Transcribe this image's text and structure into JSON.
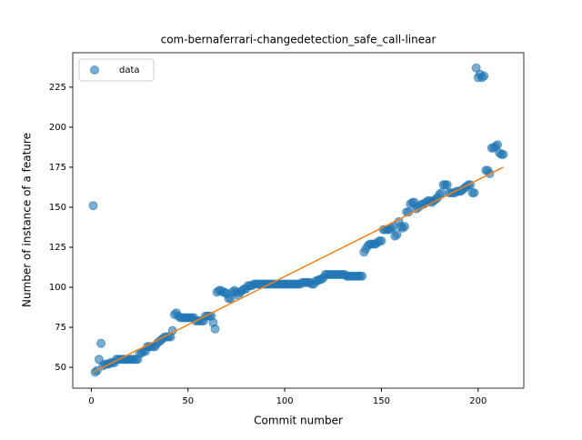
{
  "chart_data": {
    "type": "scatter",
    "title": "com-bernaferrari-changedetection_safe_call-linear",
    "x_label": "Commit number",
    "y_label": "Number of instance of a feature",
    "xlim": [
      -9.6,
      223.6
    ],
    "ylim": [
      37,
      246.5
    ],
    "xticks": [
      0,
      50,
      100,
      150,
      200
    ],
    "yticks": [
      50,
      75,
      100,
      125,
      150,
      175,
      200,
      225
    ],
    "legend": "upper left",
    "series": [
      {
        "name": "data",
        "color": "#1f77b4",
        "x": [
          1,
          2,
          3,
          4,
          5,
          6,
          7,
          8,
          9,
          10,
          11,
          12,
          13,
          14,
          15,
          16,
          17,
          18,
          19,
          20,
          21,
          22,
          23,
          24,
          25,
          26,
          27,
          28,
          29,
          30,
          31,
          32,
          33,
          34,
          35,
          36,
          37,
          38,
          39,
          40,
          41,
          42,
          43,
          44,
          45,
          46,
          47,
          48,
          49,
          50,
          51,
          52,
          53,
          54,
          55,
          56,
          57,
          58,
          59,
          60,
          61,
          62,
          63,
          64,
          65,
          66,
          67,
          68,
          69,
          70,
          71,
          72,
          73,
          74,
          75,
          76,
          77,
          78,
          79,
          80,
          81,
          82,
          83,
          84,
          85,
          86,
          87,
          88,
          89,
          90,
          91,
          92,
          93,
          94,
          95,
          96,
          97,
          98,
          99,
          100,
          101,
          102,
          103,
          104,
          105,
          106,
          107,
          108,
          109,
          110,
          111,
          112,
          113,
          114,
          115,
          116,
          117,
          118,
          119,
          120,
          121,
          122,
          123,
          124,
          125,
          126,
          127,
          128,
          129,
          130,
          131,
          132,
          133,
          134,
          135,
          136,
          137,
          138,
          139,
          140,
          141,
          142,
          143,
          144,
          145,
          146,
          147,
          148,
          149,
          150,
          151,
          152,
          153,
          154,
          155,
          156,
          157,
          158,
          159,
          160,
          161,
          162,
          163,
          164,
          165,
          166,
          167,
          168,
          169,
          170,
          171,
          172,
          173,
          174,
          175,
          176,
          177,
          178,
          179,
          180,
          181,
          182,
          183,
          184,
          185,
          186,
          187,
          188,
          189,
          190,
          191,
          192,
          193,
          194,
          195,
          196,
          197,
          198,
          199,
          200,
          201,
          202,
          203,
          204,
          205,
          206,
          207,
          208,
          209,
          210,
          211,
          212,
          213
        ],
        "values": [
          151,
          47,
          48,
          55,
          65,
          51,
          52,
          52,
          52,
          53,
          53,
          53,
          55,
          55,
          55,
          55,
          55,
          55,
          55,
          55,
          55,
          55,
          55,
          55,
          59,
          59,
          60,
          60,
          63,
          63,
          63,
          63,
          63,
          65,
          66,
          67,
          68,
          69,
          69,
          69,
          69,
          73,
          83,
          84,
          82,
          81,
          81,
          81,
          81,
          81,
          81,
          81,
          81,
          79,
          79,
          79,
          79,
          79,
          82,
          82,
          82,
          82,
          78,
          74,
          97,
          98,
          98,
          97,
          97,
          96,
          93,
          93,
          97,
          98,
          97,
          95,
          97,
          98,
          99,
          99,
          101,
          101,
          101,
          102,
          102,
          102,
          102,
          102,
          102,
          102,
          102,
          102,
          102,
          102,
          102,
          102,
          102,
          102,
          102,
          102,
          102,
          102,
          102,
          102,
          102,
          102,
          102,
          102,
          103,
          103,
          103,
          103,
          103,
          102,
          102,
          104,
          104,
          105,
          105,
          106,
          108,
          108,
          108,
          108,
          108,
          108,
          108,
          108,
          108,
          108,
          108,
          107,
          107,
          107,
          107,
          107,
          107,
          107,
          107,
          107,
          122,
          124,
          126,
          127,
          127,
          127,
          127,
          128,
          129,
          129,
          136,
          136,
          136,
          136,
          137,
          138,
          132,
          133,
          141,
          138,
          137,
          138,
          147,
          147,
          152,
          153,
          153,
          149,
          150,
          151,
          152,
          152,
          153,
          154,
          154,
          153,
          154,
          155,
          156,
          158,
          159,
          164,
          164,
          164,
          159,
          159,
          159,
          159,
          160,
          160,
          160,
          161,
          162,
          163,
          164,
          164,
          159,
          159,
          237,
          231,
          233,
          231,
          232,
          173,
          173,
          171,
          187,
          187,
          188,
          189,
          184,
          183,
          183
        ]
      }
    ],
    "fit": {
      "color": "#ff7f0e",
      "x": [
        1,
        213
      ],
      "values": [
        47,
        175
      ]
    }
  }
}
